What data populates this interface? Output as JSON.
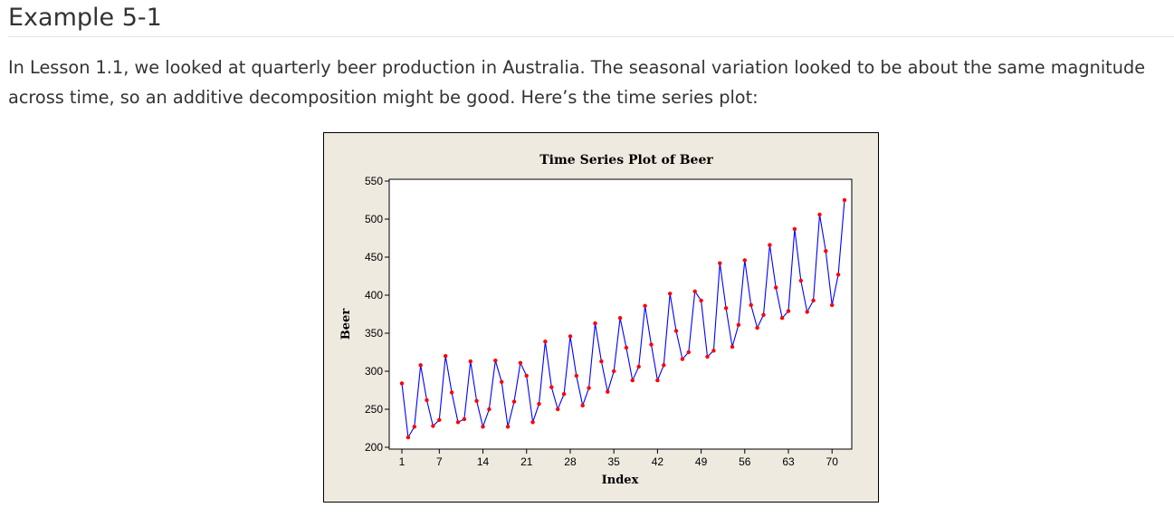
{
  "page": {
    "heading": "Example 5-1",
    "paragraph_line1": "In Lesson 1.1, we looked at quarterly beer production in Australia. The seasonal variation looked to be about the same magnitude",
    "paragraph_line2": "across time, so an additive decomposition might be good. Here’s the time series plot:"
  },
  "chart_data": {
    "type": "line",
    "title": "Time Series Plot of Beer",
    "xlabel": "Index",
    "ylabel": "Beer",
    "xlim": [
      1,
      72
    ],
    "ylim": [
      200,
      550
    ],
    "xticks": [
      1,
      7,
      14,
      21,
      28,
      35,
      42,
      49,
      56,
      63,
      70
    ],
    "yticks": [
      200,
      250,
      300,
      350,
      400,
      450,
      500,
      550
    ],
    "grid": false,
    "line_color": "#0000ff",
    "marker_color": "#ff0000",
    "x": [
      1,
      2,
      3,
      4,
      5,
      6,
      7,
      8,
      9,
      10,
      11,
      12,
      13,
      14,
      15,
      16,
      17,
      18,
      19,
      20,
      21,
      22,
      23,
      24,
      25,
      26,
      27,
      28,
      29,
      30,
      31,
      32,
      33,
      34,
      35,
      36,
      37,
      38,
      39,
      40,
      41,
      42,
      43,
      44,
      45,
      46,
      47,
      48,
      49,
      50,
      51,
      52,
      53,
      54,
      55,
      56,
      57,
      58,
      59,
      60,
      61,
      62,
      63,
      64,
      65,
      66,
      67,
      68,
      69,
      70,
      71,
      72
    ],
    "series": [
      {
        "values": [
          284,
          213,
          227,
          308,
          262,
          228,
          236,
          320,
          272,
          233,
          237,
          313,
          261,
          227,
          250,
          314,
          286,
          227,
          260,
          311,
          294,
          233,
          257,
          339,
          279,
          250,
          270,
          346,
          294,
          255,
          278,
          363,
          313,
          273,
          300,
          370,
          331,
          288,
          306,
          386,
          335,
          288,
          308,
          402,
          353,
          316,
          325,
          405,
          393,
          319,
          327,
          442,
          383,
          332,
          361,
          446,
          387,
          357,
          374,
          466,
          410,
          370,
          379,
          487,
          419,
          378,
          393,
          506,
          458,
          387,
          427,
          525
        ]
      }
    ]
  }
}
